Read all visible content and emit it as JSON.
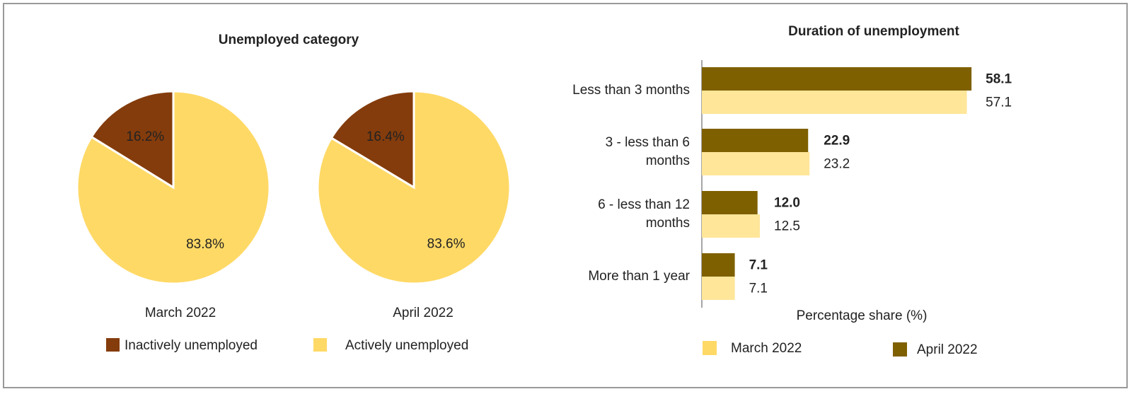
{
  "chart_data": [
    {
      "type": "pie",
      "title": "Unemployed category",
      "categories": [
        "Inactively unemployed",
        "Actively unemployed"
      ],
      "colors": [
        "#843c0c",
        "#ffd966"
      ],
      "series": [
        {
          "name": "March 2022",
          "values": [
            16.2,
            83.8
          ],
          "value_labels": [
            "16.2%",
            "83.8%"
          ]
        },
        {
          "name": "April 2022",
          "values": [
            16.4,
            83.6
          ],
          "value_labels": [
            "16.4%",
            "83.6%"
          ]
        }
      ]
    },
    {
      "type": "hbar",
      "title": "Duration of unemployment",
      "categories": [
        "Less than 3 months",
        "3 - less than 6 months",
        "6 - less than 12 months",
        "More than 1 year"
      ],
      "series": [
        {
          "name": "March 2022",
          "color": "#ffe699",
          "values": [
            57.1,
            23.2,
            12.5,
            7.1
          ],
          "value_labels": [
            "57.1",
            "23.2",
            "12.5",
            "7.1"
          ]
        },
        {
          "name": "April 2022",
          "color": "#7f6000",
          "values": [
            58.1,
            22.9,
            12.0,
            7.1
          ],
          "value_labels": [
            "58.1",
            "22.9",
            "12.0",
            "7.1"
          ]
        }
      ],
      "xlabel": "Percentage share (%)",
      "xlim": [
        0,
        60
      ]
    }
  ]
}
